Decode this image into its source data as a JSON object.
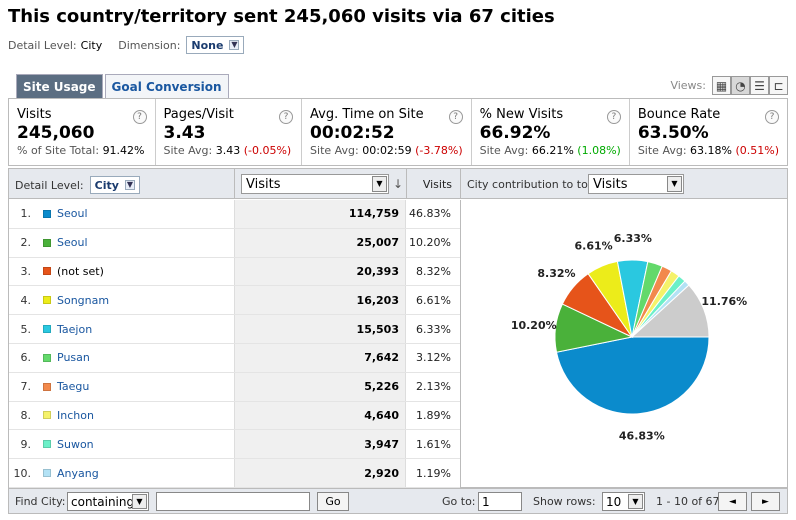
{
  "title": "This country/territory sent 245,060 visits via 67 cities",
  "detail": {
    "level_label": "Detail Level:",
    "level_value": "City",
    "dimension_label": "Dimension:",
    "dimension_value": "None"
  },
  "tabs": [
    {
      "label": "Site Usage"
    },
    {
      "label": "Goal Conversion"
    }
  ],
  "views_label": "Views:",
  "metrics": [
    {
      "label": "Visits",
      "value": "245,060",
      "sub_prefix": "% of Site Total: ",
      "sub_value": "91.42%",
      "sub_delta": ""
    },
    {
      "label": "Pages/Visit",
      "value": "3.43",
      "sub_prefix": "Site Avg: ",
      "sub_value": "3.43",
      "sub_delta": "(-0.05%)"
    },
    {
      "label": "Avg. Time on Site",
      "value": "00:02:52",
      "sub_prefix": "Site Avg: ",
      "sub_value": "00:02:59",
      "sub_delta": "(-3.78%)"
    },
    {
      "label": "% New Visits",
      "value": "66.92%",
      "sub_prefix": "Site Avg: ",
      "sub_value": "66.21%",
      "sub_delta": "(1.08%)"
    },
    {
      "label": "Bounce Rate",
      "value": "63.50%",
      "sub_prefix": "Site Avg: ",
      "sub_value": "63.18%",
      "sub_delta": "(0.51%)"
    }
  ],
  "table": {
    "detail_level_label": "Detail Level:",
    "detail_level_value": "City",
    "metric_select": "Visits",
    "col_visits": "Visits",
    "pie_label": "City contribution to total:",
    "pie_select": "Visits",
    "rows": [
      {
        "num": "1.",
        "city": "Seoul",
        "visits": "114,759",
        "pct": "46.83%",
        "color": "#0b8bcc",
        "link": true
      },
      {
        "num": "2.",
        "city": "Seoul",
        "visits": "25,007",
        "pct": "10.20%",
        "color": "#4ab13a",
        "link": true
      },
      {
        "num": "3.",
        "city": "(not set)",
        "visits": "20,393",
        "pct": "8.32%",
        "color": "#e6541a",
        "link": false
      },
      {
        "num": "4.",
        "city": "Songnam",
        "visits": "16,203",
        "pct": "6.61%",
        "color": "#ecec1a",
        "link": true
      },
      {
        "num": "5.",
        "city": "Taejon",
        "visits": "15,503",
        "pct": "6.33%",
        "color": "#2ac8e0",
        "link": true
      },
      {
        "num": "6.",
        "city": "Pusan",
        "visits": "7,642",
        "pct": "3.12%",
        "color": "#63d96b",
        "link": true
      },
      {
        "num": "7.",
        "city": "Taegu",
        "visits": "5,226",
        "pct": "2.13%",
        "color": "#f2894c",
        "link": true
      },
      {
        "num": "8.",
        "city": "Inchon",
        "visits": "4,640",
        "pct": "1.89%",
        "color": "#f5f26a",
        "link": true
      },
      {
        "num": "9.",
        "city": "Suwon",
        "visits": "3,947",
        "pct": "1.61%",
        "color": "#6cf0c8",
        "link": true
      },
      {
        "num": "10.",
        "city": "Anyang",
        "visits": "2,920",
        "pct": "1.19%",
        "color": "#b3e2f5",
        "link": true
      }
    ]
  },
  "chart_data": {
    "type": "pie",
    "slices": [
      {
        "label": "46.83%",
        "value": 46.83,
        "color": "#0b8bcc"
      },
      {
        "label": "10.20%",
        "value": 10.2,
        "color": "#4ab13a"
      },
      {
        "label": "8.32%",
        "value": 8.32,
        "color": "#e6541a"
      },
      {
        "label": "6.61%",
        "value": 6.61,
        "color": "#ecec1a"
      },
      {
        "label": "6.33%",
        "value": 6.33,
        "color": "#2ac8e0"
      },
      {
        "label": "",
        "value": 3.12,
        "color": "#63d96b"
      },
      {
        "label": "",
        "value": 2.13,
        "color": "#f2894c"
      },
      {
        "label": "",
        "value": 1.89,
        "color": "#f5f26a"
      },
      {
        "label": "",
        "value": 1.61,
        "color": "#6cf0c8"
      },
      {
        "label": "",
        "value": 1.19,
        "color": "#b3e2f5"
      },
      {
        "label": "11.76%",
        "value": 11.76,
        "color": "#cccccc"
      }
    ]
  },
  "footer": {
    "find_label": "Find City:",
    "match_select": "containing",
    "search_value": "",
    "go_button": "Go",
    "goto_label": "Go to:",
    "goto_value": "1",
    "show_rows_label": "Show rows:",
    "show_rows_value": "10",
    "range": "1 - 10 of 67",
    "prev": "◄",
    "next": "►"
  }
}
